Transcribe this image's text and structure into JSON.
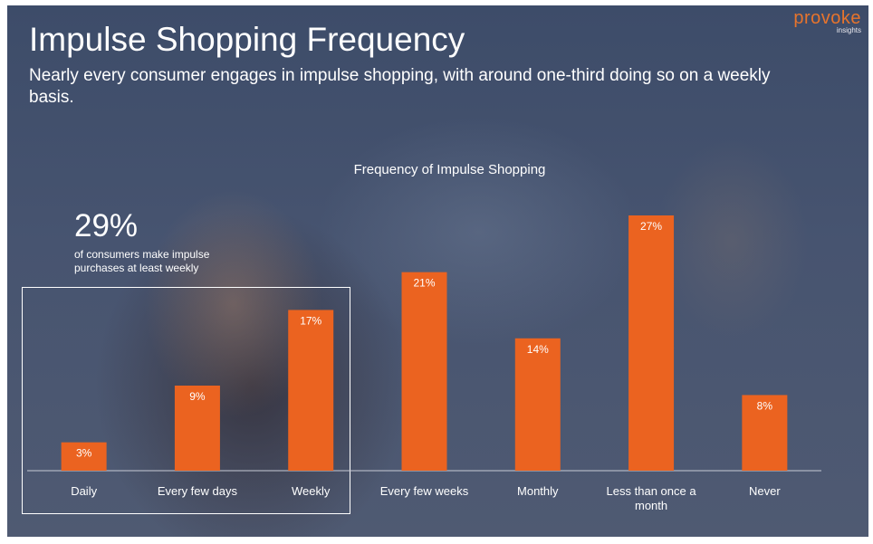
{
  "logo": {
    "word": "provoke",
    "sub": "insights"
  },
  "title": "Impulse Shopping Frequency",
  "subtitle": "Nearly every consumer engages in impulse shopping, with around one-third doing so on a weekly basis.",
  "callout": {
    "value": "29%",
    "text": "of consumers make impulse purchases at least weekly"
  },
  "colors": {
    "bar": "#eb6320",
    "logo": "#e8742c",
    "text": "#ffffff"
  },
  "chart_data": {
    "type": "bar",
    "title": "Frequency of Impulse Shopping",
    "xlabel": "",
    "ylabel": "",
    "categories": [
      "Daily",
      "Every few days",
      "Weekly",
      "Every few weeks",
      "Monthly",
      "Less than once a month",
      "Never"
    ],
    "values": [
      3,
      9,
      17,
      21,
      14,
      27,
      8
    ],
    "data_labels": [
      "3%",
      "9%",
      "17%",
      "21%",
      "14%",
      "27%",
      "8%"
    ],
    "ylim": [
      0,
      27
    ],
    "grid": false,
    "legend": "none"
  }
}
